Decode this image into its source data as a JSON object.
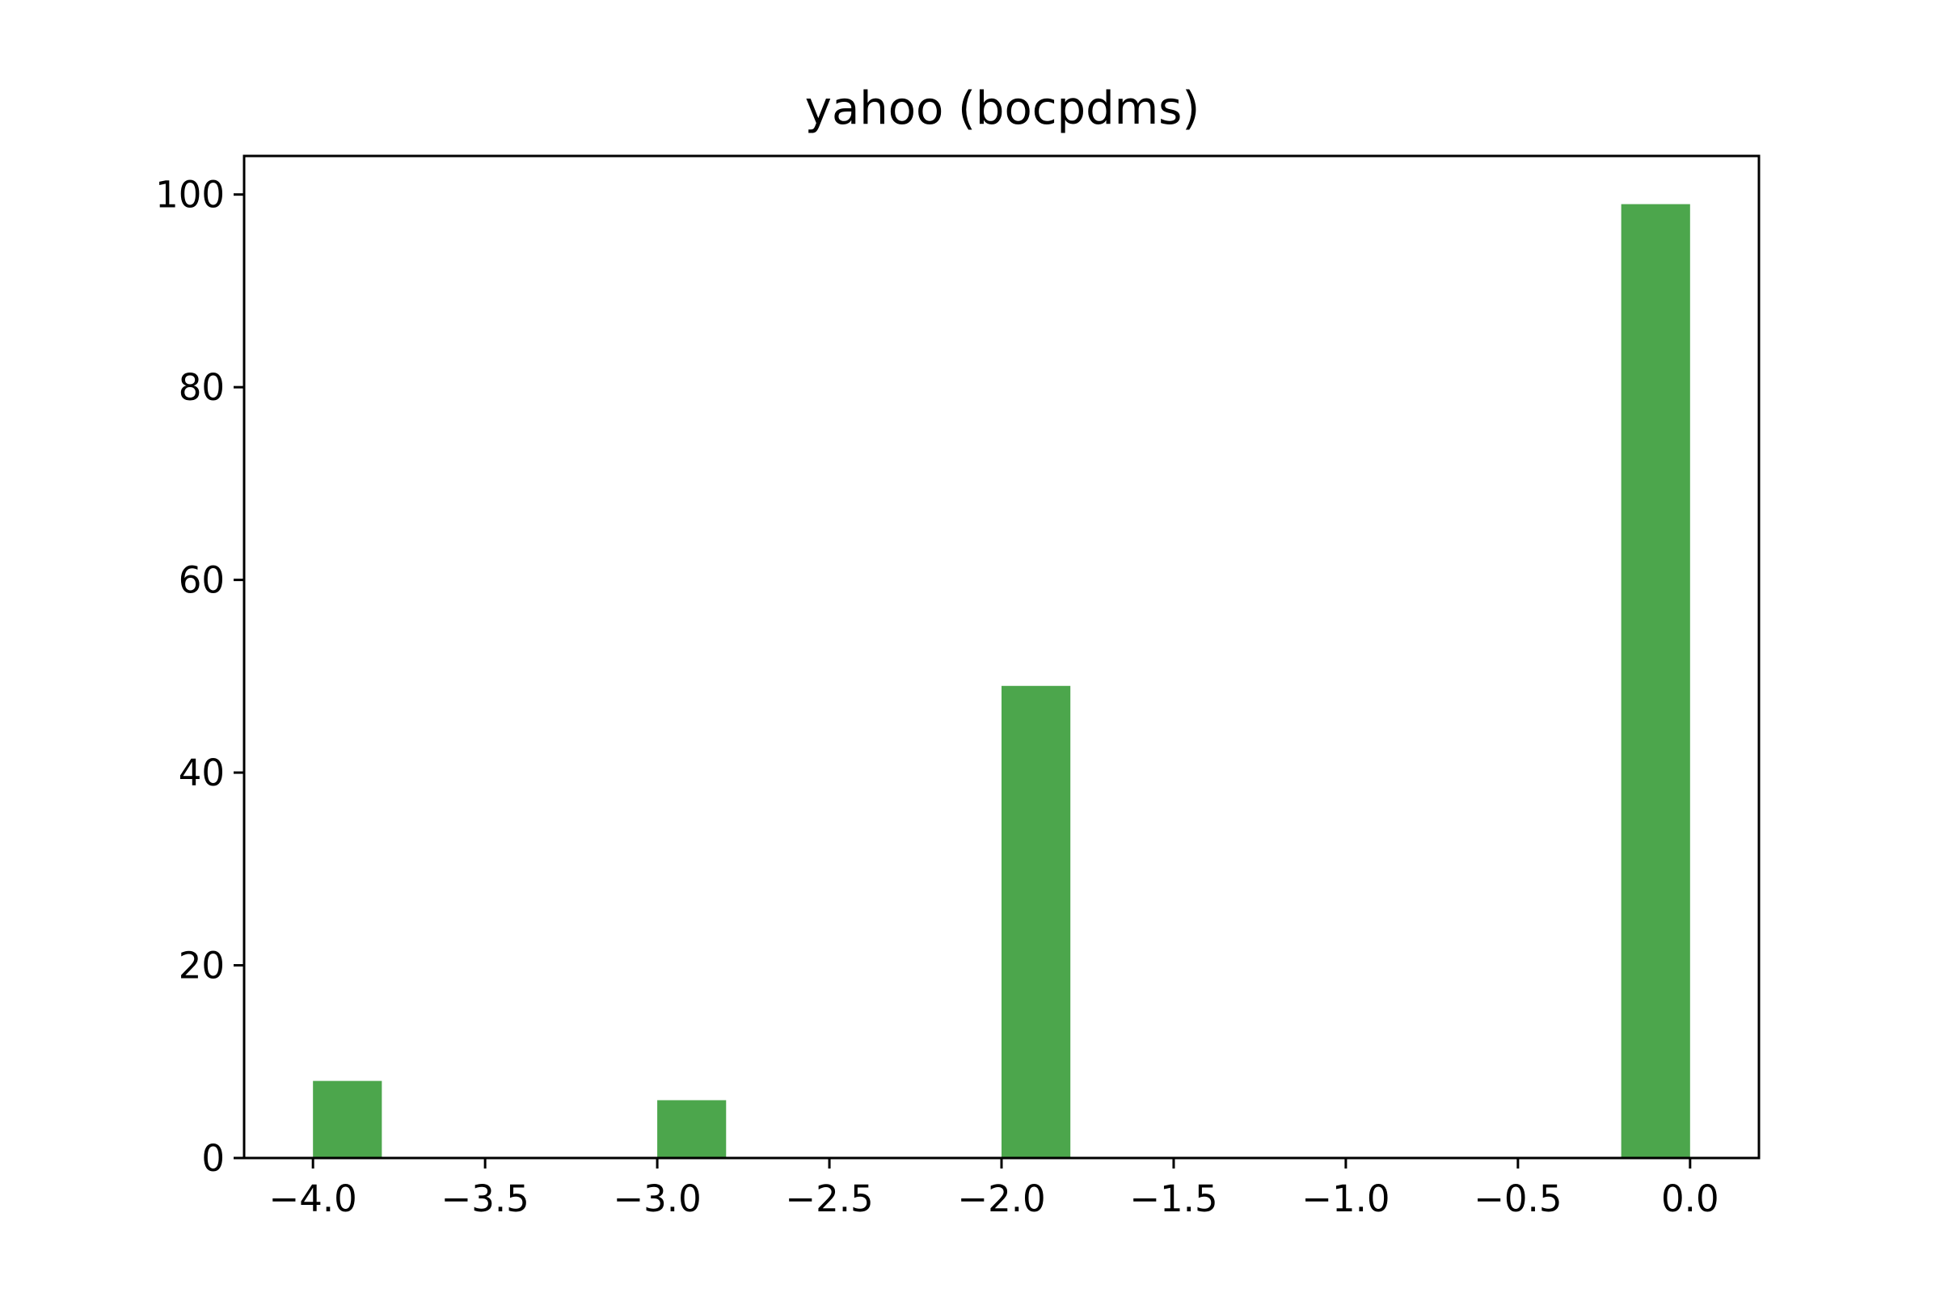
{
  "chart_data": {
    "type": "bar",
    "title": "yahoo (bocpdms)",
    "xlabel": "",
    "ylabel": "",
    "bin_width": 0.2,
    "bins": [
      {
        "x_start": -4.0,
        "x_end": -3.8,
        "value": 8
      },
      {
        "x_start": -3.0,
        "x_end": -2.8,
        "value": 6
      },
      {
        "x_start": -2.0,
        "x_end": -1.8,
        "value": 49
      },
      {
        "x_start": -0.2,
        "x_end": 0.0,
        "value": 99
      }
    ],
    "xlim": [
      -4.2,
      0.2
    ],
    "ylim": [
      0,
      104
    ],
    "x_ticks": [
      -4.0,
      -3.5,
      -3.0,
      -2.5,
      -2.0,
      -1.5,
      -1.0,
      -0.5,
      0.0
    ],
    "x_tick_labels": [
      "−4.0",
      "−3.5",
      "−3.0",
      "−2.5",
      "−2.0",
      "−1.5",
      "−1.0",
      "−0.5",
      "0.0"
    ],
    "y_ticks": [
      0,
      20,
      40,
      60,
      80,
      100
    ],
    "y_tick_labels": [
      "0",
      "20",
      "40",
      "60",
      "80",
      "100"
    ],
    "grid": false,
    "bar_color": "#4ca64c"
  }
}
